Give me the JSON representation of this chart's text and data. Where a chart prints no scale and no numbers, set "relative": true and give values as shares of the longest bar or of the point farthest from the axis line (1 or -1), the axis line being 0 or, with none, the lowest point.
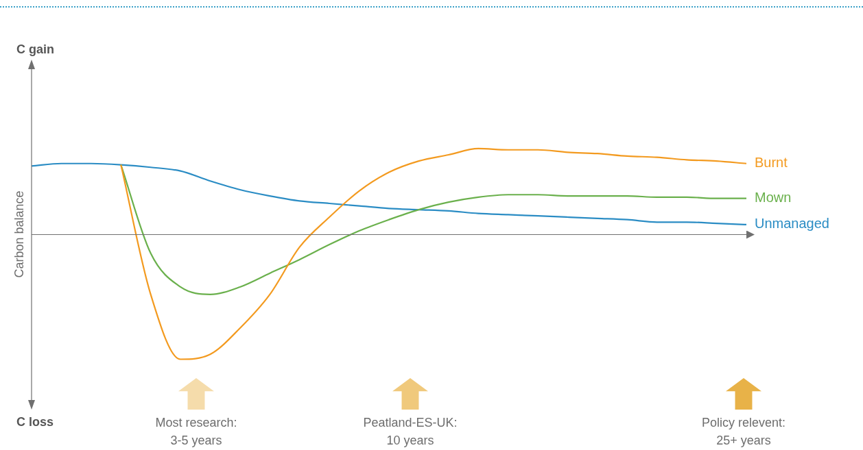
{
  "chart_data": {
    "type": "line",
    "relative": true,
    "ylabel": "Carbon balance",
    "categories": [
      null,
      null,
      null,
      null,
      null,
      null,
      null,
      null,
      null,
      null,
      null,
      null,
      null,
      null,
      null,
      null,
      null,
      null,
      null,
      null,
      null,
      null,
      null,
      null,
      null
    ],
    "series": [
      {
        "name": "Burnt",
        "color": "#f39a1f",
        "values": [
          null,
          null,
          null,
          0.56,
          -0.48,
          -1.0,
          -0.96,
          -0.75,
          -0.48,
          -0.1,
          0.14,
          0.35,
          0.5,
          0.59,
          0.64,
          0.69,
          0.68,
          0.68,
          0.66,
          0.65,
          0.63,
          0.62,
          0.6,
          0.59,
          0.57
        ]
      },
      {
        "name": "Mown",
        "color": "#6ab04c",
        "values": [
          null,
          null,
          null,
          0.56,
          -0.15,
          -0.42,
          -0.48,
          -0.42,
          -0.31,
          -0.2,
          -0.08,
          0.03,
          0.12,
          0.2,
          0.26,
          0.3,
          0.32,
          0.32,
          0.31,
          0.31,
          0.31,
          0.3,
          0.3,
          0.29,
          0.29
        ]
      },
      {
        "name": "Unmanaged",
        "color": "#2a8cc4",
        "values": [
          0.55,
          0.57,
          0.57,
          0.56,
          0.54,
          0.51,
          0.43,
          0.36,
          0.31,
          0.27,
          0.25,
          0.23,
          0.21,
          0.2,
          0.19,
          0.17,
          0.16,
          0.15,
          0.14,
          0.13,
          0.12,
          0.1,
          0.1,
          0.09,
          0.08
        ]
      }
    ],
    "annotations": [
      "C gain",
      "C loss",
      "Most research:\n3-5 years",
      "Peatland-ES-UK:\n10 years",
      "Policy relevent:\n25+ years"
    ],
    "legend": false,
    "marker": "none",
    "line_style": "solid"
  }
}
